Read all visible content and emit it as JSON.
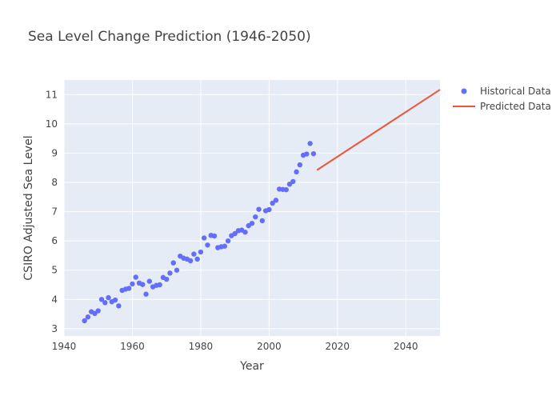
{
  "chart_data": {
    "type": "scatter",
    "title": "Sea Level Change Prediction (1946-2050)",
    "xlabel": "Year",
    "ylabel": "CSIRO Adjusted Sea Level",
    "xlim": [
      1940,
      2050
    ],
    "ylim": [
      2.75,
      11.5
    ],
    "x_ticks": [
      1940,
      1960,
      1980,
      2000,
      2020,
      2040
    ],
    "y_ticks": [
      3,
      4,
      5,
      6,
      7,
      8,
      9,
      10,
      11
    ],
    "grid": true,
    "legend_position": "top-right",
    "background_color": "#e5ecf6",
    "series": [
      {
        "name": "Historical Data",
        "mode": "markers",
        "color": "#636efa",
        "x": [
          1946,
          1947,
          1948,
          1949,
          1950,
          1951,
          1952,
          1953,
          1954,
          1955,
          1956,
          1957,
          1958,
          1959,
          1960,
          1961,
          1962,
          1963,
          1964,
          1965,
          1966,
          1967,
          1968,
          1969,
          1970,
          1971,
          1972,
          1973,
          1974,
          1975,
          1976,
          1977,
          1978,
          1979,
          1980,
          1981,
          1982,
          1983,
          1984,
          1985,
          1986,
          1987,
          1988,
          1989,
          1990,
          1991,
          1992,
          1993,
          1994,
          1995,
          1996,
          1997,
          1998,
          1999,
          2000,
          2001,
          2002,
          2003,
          2004,
          2005,
          2006,
          2007,
          2008,
          2009,
          2010,
          2011,
          2012,
          2013
        ],
        "y": [
          3.27,
          3.4,
          3.58,
          3.52,
          3.61,
          4.0,
          3.89,
          4.06,
          3.92,
          3.98,
          3.78,
          4.31,
          4.35,
          4.38,
          4.53,
          4.76,
          4.56,
          4.51,
          4.18,
          4.62,
          4.43,
          4.48,
          4.5,
          4.75,
          4.69,
          4.9,
          5.25,
          5.0,
          5.48,
          5.41,
          5.38,
          5.32,
          5.55,
          5.38,
          5.62,
          6.1,
          5.86,
          6.19,
          6.17,
          5.77,
          5.8,
          5.82,
          6.0,
          6.18,
          6.25,
          6.35,
          6.37,
          6.3,
          6.52,
          6.6,
          6.82,
          7.08,
          6.69,
          7.03,
          7.07,
          7.29,
          7.39,
          7.77,
          7.76,
          7.75,
          7.94,
          8.03,
          8.36,
          8.6,
          8.93,
          8.97,
          9.33,
          8.98
        ]
      },
      {
        "name": "Predicted Data",
        "mode": "lines",
        "color": "#ef553b",
        "x": [
          2014,
          2050
        ],
        "y": [
          8.42,
          11.17
        ]
      }
    ]
  }
}
